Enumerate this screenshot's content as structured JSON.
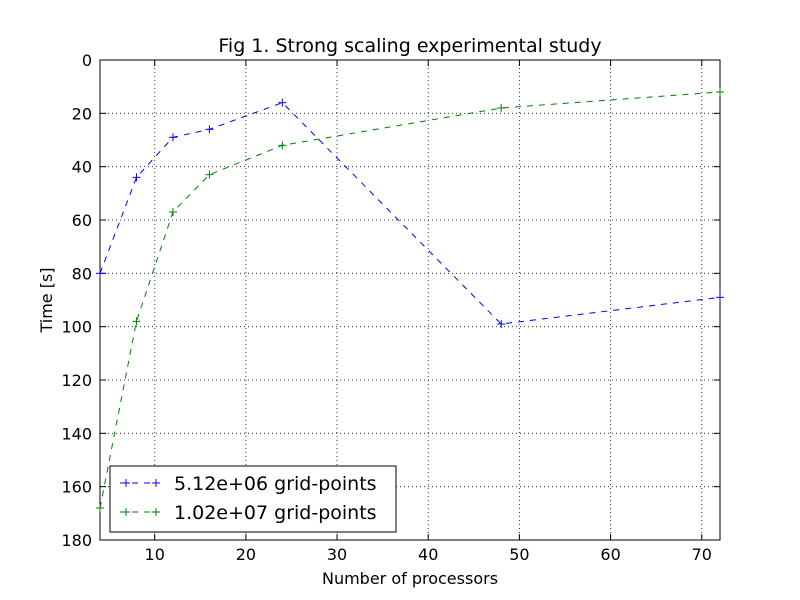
{
  "chart_data": {
    "type": "line",
    "title": "Fig 1. Strong scaling experimental study",
    "xlabel": "Number of processors",
    "ylabel": "Time [s]",
    "xlim": [
      4,
      72
    ],
    "ylim": [
      0,
      180
    ],
    "y_inverted": true,
    "xticks": [
      10,
      20,
      30,
      40,
      50,
      60,
      70
    ],
    "yticks": [
      0,
      20,
      40,
      60,
      80,
      100,
      120,
      140,
      160,
      180
    ],
    "grid": true,
    "legend_position": "lower-left",
    "series": [
      {
        "name": "5.12e+06 grid-points",
        "color": "#0000ff",
        "marker": "plus",
        "linestyle": "dashed",
        "x": [
          4,
          8,
          12,
          16,
          24,
          48,
          72
        ],
        "y": [
          80,
          44,
          29,
          26,
          16,
          99,
          89
        ]
      },
      {
        "name": "1.02e+07 grid-points",
        "color": "#008000",
        "marker": "plus",
        "linestyle": "dashed",
        "x": [
          4,
          8,
          12,
          16,
          24,
          48,
          72
        ],
        "y": [
          168,
          98,
          57,
          43,
          32,
          18,
          12
        ]
      }
    ]
  }
}
